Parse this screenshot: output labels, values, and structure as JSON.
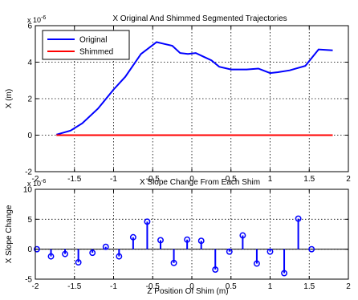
{
  "chart_data": [
    {
      "type": "line",
      "title": "X Original And Shimmed Segmented Trajectories",
      "xlabel": "",
      "ylabel": "X (m)",
      "exponent_label": "x 10",
      "exponent": "-6",
      "xlim": [
        -2,
        2
      ],
      "ylim": [
        -2,
        6
      ],
      "xticks": [
        -2,
        -1.5,
        -1,
        -0.5,
        0,
        0.5,
        1,
        1.5,
        2
      ],
      "xtick_labels": [
        "-2",
        "-1.5",
        "-1",
        "-0.5",
        "0",
        "0.5",
        "1",
        "1.5",
        "2"
      ],
      "yticks": [
        -2,
        0,
        2,
        4,
        6
      ],
      "ytick_labels": [
        "-2",
        "0",
        "2",
        "4",
        "6"
      ],
      "grid": true,
      "legend_position": "top-left",
      "series": [
        {
          "name": "Original",
          "color": "#0000ff",
          "x": [
            -1.73,
            -1.55,
            -1.4,
            -1.2,
            -1.0,
            -0.85,
            -0.65,
            -0.45,
            -0.35,
            -0.25,
            -0.15,
            -0.05,
            0.05,
            0.15,
            0.25,
            0.35,
            0.5,
            0.7,
            0.85,
            1.0,
            1.1,
            1.25,
            1.45,
            1.62,
            1.8
          ],
          "y": [
            0.03,
            0.25,
            0.65,
            1.45,
            2.5,
            3.2,
            4.45,
            5.1,
            5.0,
            4.9,
            4.5,
            4.45,
            4.5,
            4.3,
            4.1,
            3.75,
            3.6,
            3.6,
            3.65,
            3.4,
            3.45,
            3.55,
            3.8,
            4.7,
            4.65
          ]
        },
        {
          "name": "Shimmed",
          "color": "#ff0000",
          "x": [
            -1.73,
            1.8
          ],
          "y": [
            0,
            0
          ]
        }
      ]
    },
    {
      "type": "stem",
      "title": "X Slope Change From Each Shim",
      "xlabel": "Z Position Of Shim (m)",
      "ylabel": "X Slope Change",
      "exponent_label": "x 10",
      "exponent": "-6",
      "xlim": [
        -2,
        2
      ],
      "ylim": [
        -5,
        10
      ],
      "xticks": [
        -2,
        -1.5,
        -1,
        -0.5,
        0,
        0.5,
        1,
        1.5,
        2
      ],
      "xtick_labels": [
        "-2",
        "-1.5",
        "-1",
        "-0.5",
        "0",
        "0.5",
        "1",
        "1.5",
        "2"
      ],
      "yticks": [
        -5,
        0,
        5,
        10
      ],
      "ytick_labels": [
        "-5",
        "0",
        "5",
        "10"
      ],
      "grid": true,
      "color": "#0000ff",
      "x": [
        -1.98,
        -1.8,
        -1.62,
        -1.45,
        -1.27,
        -1.1,
        -0.93,
        -0.75,
        -0.57,
        -0.4,
        -0.23,
        -0.06,
        0.12,
        0.3,
        0.48,
        0.65,
        0.83,
        1.0,
        1.18,
        1.36,
        1.53
      ],
      "y": [
        0.0,
        -1.2,
        -0.8,
        -2.2,
        -0.6,
        0.4,
        -1.2,
        2.0,
        4.6,
        1.5,
        -2.3,
        1.6,
        1.4,
        -3.4,
        -0.4,
        2.3,
        -2.4,
        -0.4,
        -4.0,
        5.1,
        0.0
      ]
    }
  ]
}
